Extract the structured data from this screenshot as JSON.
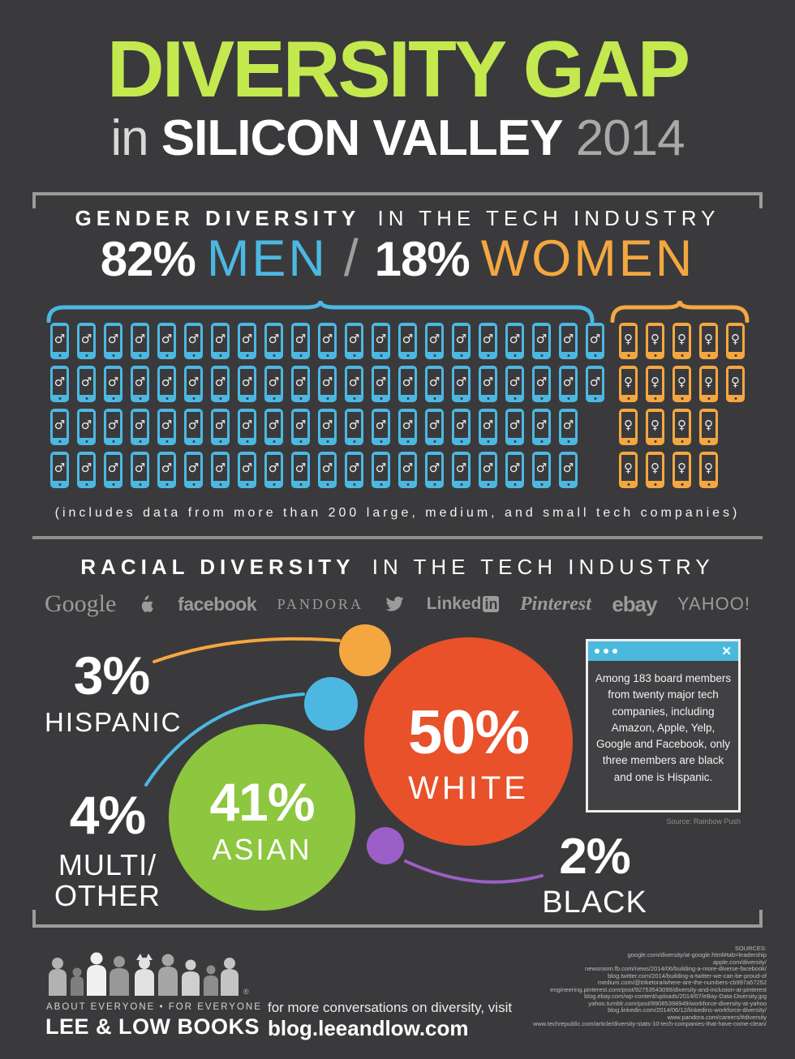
{
  "header": {
    "title": "DIVERSITY GAP",
    "subtitle_prefix": "in",
    "subtitle_main": "SILICON VALLEY",
    "subtitle_year": "2014",
    "title_color": "#c3e94f"
  },
  "gender": {
    "heading_strong": "GENDER DIVERSITY",
    "heading_light": "IN THE TECH INDUSTRY",
    "men_pct": "82%",
    "men_label": "MEN",
    "separator": "/",
    "women_pct": "18%",
    "women_label": "WOMEN",
    "men": {
      "symbol": "♂",
      "color": "#4cb8e2",
      "rows": [
        21,
        21,
        20,
        20
      ],
      "icon_name": "male-phone-icon"
    },
    "women": {
      "symbol": "♀",
      "color": "#f4a740",
      "rows": [
        5,
        5,
        4,
        4
      ],
      "icon_name": "female-phone-icon"
    },
    "caption": "(includes data from more than 200 large, medium, and small tech companies)"
  },
  "racial": {
    "heading_strong": "RACIAL DIVERSITY",
    "heading_light": "IN THE TECH INDUSTRY",
    "companies": [
      {
        "id": "google",
        "text": "Google"
      },
      {
        "id": "apple",
        "icon": "apple"
      },
      {
        "id": "facebook",
        "text": "facebook"
      },
      {
        "id": "pandora",
        "text": "PANDORA"
      },
      {
        "id": "twitter",
        "icon": "twitter"
      },
      {
        "id": "linkedin",
        "text": "Linked",
        "badge": "in"
      },
      {
        "id": "pinterest",
        "text": "Pinterest"
      },
      {
        "id": "ebay",
        "text": "ebay"
      },
      {
        "id": "yahoo",
        "text": "YAHOO!"
      }
    ],
    "labels": {
      "hispanic": {
        "pct": "3%",
        "name": "HISPANIC"
      },
      "white": {
        "pct": "50%",
        "name": "WHITE"
      },
      "asian": {
        "pct": "41%",
        "name": "ASIAN"
      },
      "multi": {
        "pct": "4%",
        "name_line1": "MULTI/",
        "name_line2": "OTHER"
      },
      "black": {
        "pct": "2%",
        "name": "BLACK"
      }
    },
    "colors": {
      "hispanic": "#f4a740",
      "white": "#e8512a",
      "asian": "#8dc63f",
      "multi": "#4cb8e2",
      "black": "#9c5fc7"
    },
    "popup": {
      "text": "Among 183 board members from twenty major tech companies, including Amazon, Apple, Yelp, Google and Facebook, only three members are black and one is Hispanic.",
      "source": "Source: Rainbow Push",
      "titlebar_color": "#4bb9dd",
      "close_glyph": "✕"
    }
  },
  "footer": {
    "logo_tagline": "ABOUT EVERYONE  •  FOR EVERYONE",
    "logo_name": "LEE & LOW BOOKS",
    "reg_mark": "®",
    "cta_line1": "for more conversations on diversity, visit",
    "cta_line2": "blog.leeandlow.com",
    "sources_heading": "SOURCES:",
    "sources": [
      "google.com/diversity/at-google.html#tab=leadership",
      "apple.com/diversity/",
      "newsroom.fb.com/news/2014/06/building-a-more-diverse-facebook/",
      "blog.twitter.com/2014/building-a-twitter-we-can-be-proud-of",
      "medium.com/@triketora/where-are-the-numbers-cb997a57252",
      "engineering.pinterest.com/post/92753543099/diversity-and-inclusion-at-pinterest",
      "blog.ebay.com/wp-content/uploads/2014/07/eBay-Data-Diversity.jpg",
      "yahoo.tumblr.com/post/89085398949/workforce-diversity-at-yahoo",
      "blog.linkedin.com/2014/06/12/linkedins-workforce-diversity/",
      "www.pandora.com/careers/#diversity",
      "www.techrepublic.com/article/diversity-stats-10-tech-companies-that-have-come-clean/"
    ]
  },
  "chart_data": [
    {
      "type": "bar",
      "title": "Gender diversity in the tech industry",
      "categories": [
        "Men",
        "Women"
      ],
      "values": [
        82,
        18
      ],
      "unit": "%",
      "style": "pictogram of smartphones (1 phone = 1%)",
      "pictogram_rows": {
        "men": [
          21,
          21,
          20,
          20
        ],
        "women": [
          5,
          5,
          4,
          4
        ]
      },
      "colors": {
        "Men": "#4cb8e2",
        "Women": "#f4a740"
      },
      "note": "includes data from more than 200 large, medium, and small tech companies"
    },
    {
      "type": "pie",
      "title": "Racial diversity in the tech industry",
      "categories": [
        "White",
        "Asian",
        "Multi/Other",
        "Hispanic",
        "Black"
      ],
      "values": [
        50,
        41,
        4,
        3,
        2
      ],
      "unit": "%",
      "style": "proportional bubbles",
      "colors": {
        "White": "#e8512a",
        "Asian": "#8dc63f",
        "Multi/Other": "#4cb8e2",
        "Hispanic": "#f4a740",
        "Black": "#9c5fc7"
      },
      "annotation": "Among 183 board members from twenty major tech companies, including Amazon, Apple, Yelp, Google and Facebook, only three members are black and one is Hispanic. (Source: Rainbow Push)",
      "companies_shown": [
        "Google",
        "Apple",
        "facebook",
        "PANDORA",
        "Twitter",
        "LinkedIn",
        "Pinterest",
        "ebay",
        "YAHOO!"
      ]
    }
  ]
}
